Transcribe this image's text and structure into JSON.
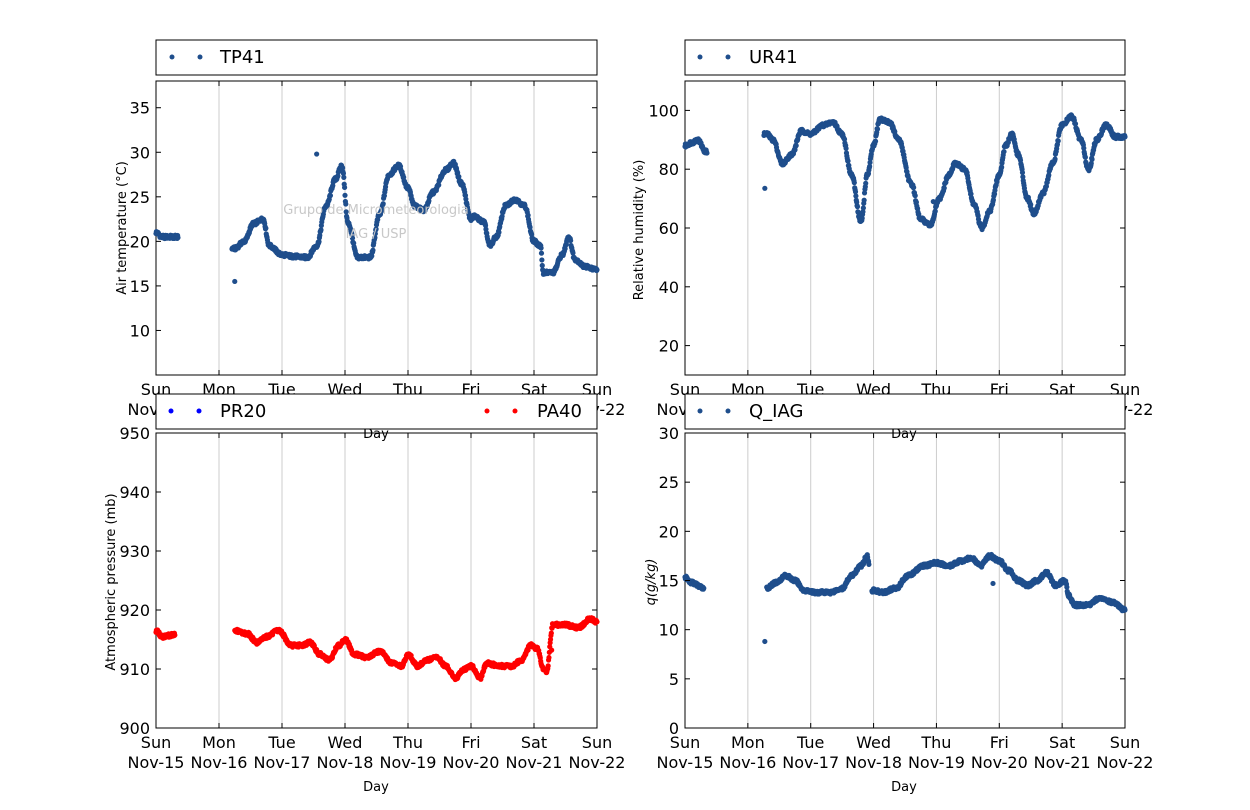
{
  "colors": {
    "blue": "#1f4e8c",
    "pure_blue": "#0000ff",
    "red": "#ff0000",
    "grid": "#cccccc"
  },
  "watermark": {
    "line1": "Grupo de Micrometeorologia",
    "line2": "IAG / USP"
  },
  "x_ticks": [
    {
      "day": 0,
      "top": "Sun",
      "bottom": "Nov-15"
    },
    {
      "day": 1,
      "top": "Mon",
      "bottom": "Nov-16"
    },
    {
      "day": 2,
      "top": "Tue",
      "bottom": "Nov-17"
    },
    {
      "day": 3,
      "top": "Wed",
      "bottom": "Nov-18"
    },
    {
      "day": 4,
      "top": "Thu",
      "bottom": "Nov-19"
    },
    {
      "day": 5,
      "top": "Fri",
      "bottom": "Nov-20"
    },
    {
      "day": 6,
      "top": "Sat",
      "bottom": "Nov-21"
    },
    {
      "day": 7,
      "top": "Sun",
      "bottom": "Nov-22"
    }
  ],
  "chart_data": [
    {
      "id": "temp",
      "type": "scatter",
      "xlabel": "Day",
      "ylabel": "Air temperature (°C)",
      "ylim": [
        5,
        38
      ],
      "yticks": [
        10,
        15,
        20,
        25,
        30,
        35
      ],
      "xlim": [
        "Nov-15",
        "Nov-22"
      ],
      "grid": "x",
      "legend": [
        {
          "name": "TP41",
          "color": "#1f4e8c"
        }
      ],
      "series": [
        {
          "name": "TP41",
          "color": "#1f4e8c",
          "gaps": [
            [
              0.35,
              1.2
            ]
          ],
          "points": [
            [
              0,
              21
            ],
            [
              0.1,
              20.5
            ],
            [
              0.33,
              20.5
            ],
            [
              1.25,
              19.2
            ],
            [
              1.4,
              20
            ],
            [
              1.55,
              22
            ],
            [
              1.7,
              22.5
            ],
            [
              1.8,
              19.5
            ],
            [
              2,
              18.5
            ],
            [
              2.2,
              18.3
            ],
            [
              2.4,
              18.2
            ],
            [
              2.55,
              19.5
            ],
            [
              2.7,
              24
            ],
            [
              2.85,
              27
            ],
            [
              2.95,
              28.5
            ],
            [
              3.05,
              22
            ],
            [
              3.2,
              18.2
            ],
            [
              3.4,
              18.2
            ],
            [
              3.55,
              23
            ],
            [
              3.7,
              27.5
            ],
            [
              3.85,
              28.5
            ],
            [
              4,
              26
            ],
            [
              4.1,
              24
            ],
            [
              4.25,
              23.5
            ],
            [
              4.4,
              25.5
            ],
            [
              4.6,
              28
            ],
            [
              4.72,
              28.8
            ],
            [
              4.85,
              26.5
            ],
            [
              5,
              22.5
            ],
            [
              5.05,
              22.8
            ],
            [
              5.2,
              22.2
            ],
            [
              5.3,
              19.5
            ],
            [
              5.4,
              20.5
            ],
            [
              5.55,
              24
            ],
            [
              5.7,
              24.7
            ],
            [
              5.85,
              24
            ],
            [
              6,
              20
            ],
            [
              6.1,
              19.5
            ],
            [
              6.15,
              16.5
            ],
            [
              6.3,
              16.5
            ],
            [
              6.45,
              18.5
            ],
            [
              6.55,
              20.5
            ],
            [
              6.65,
              18
            ],
            [
              6.8,
              17.2
            ],
            [
              7,
              16.8
            ]
          ]
        },
        {
          "name": "TP41-outlier",
          "color": "#1f4e8c",
          "points": [
            [
              1.25,
              15.5
            ],
            [
              2.55,
              29.8
            ]
          ]
        }
      ]
    },
    {
      "id": "rh",
      "type": "scatter",
      "xlabel": "Day",
      "ylabel": "Relative humidity (%)",
      "ylim": [
        10,
        110
      ],
      "yticks": [
        20,
        40,
        60,
        80,
        100
      ],
      "xlim": [
        "Nov-15",
        "Nov-22"
      ],
      "grid": "x",
      "legend": [
        {
          "name": "UR41",
          "color": "#1f4e8c"
        }
      ],
      "series": [
        {
          "name": "UR41",
          "color": "#1f4e8c",
          "gaps": [
            [
              0.35,
              1.25
            ]
          ],
          "points": [
            [
              0,
              88
            ],
            [
              0.1,
              89
            ],
            [
              0.2,
              90
            ],
            [
              0.33,
              86
            ],
            [
              1.3,
              92
            ],
            [
              1.4,
              90
            ],
            [
              1.55,
              82
            ],
            [
              1.7,
              85
            ],
            [
              1.85,
              93
            ],
            [
              2,
              92
            ],
            [
              2.2,
              95
            ],
            [
              2.35,
              96
            ],
            [
              2.5,
              92
            ],
            [
              2.65,
              78
            ],
            [
              2.8,
              62
            ],
            [
              2.9,
              78
            ],
            [
              3,
              88
            ],
            [
              3.1,
              97
            ],
            [
              3.25,
              96
            ],
            [
              3.4,
              90
            ],
            [
              3.6,
              75
            ],
            [
              3.75,
              63
            ],
            [
              3.9,
              61
            ],
            [
              4.05,
              70
            ],
            [
              4.2,
              78
            ],
            [
              4.3,
              82
            ],
            [
              4.45,
              80
            ],
            [
              4.6,
              68
            ],
            [
              4.72,
              60
            ],
            [
              4.85,
              66
            ],
            [
              5,
              78
            ],
            [
              5.1,
              88
            ],
            [
              5.2,
              92
            ],
            [
              5.3,
              85
            ],
            [
              5.45,
              70
            ],
            [
              5.55,
              65
            ],
            [
              5.7,
              72
            ],
            [
              5.85,
              82
            ],
            [
              6,
              95
            ],
            [
              6.15,
              98
            ],
            [
              6.3,
              90
            ],
            [
              6.42,
              80
            ],
            [
              6.55,
              90
            ],
            [
              6.7,
              95
            ],
            [
              6.85,
              91
            ],
            [
              7,
              91
            ]
          ]
        },
        {
          "name": "UR41-outlier",
          "color": "#1f4e8c",
          "points": [
            [
              1.27,
              73.5
            ],
            [
              3.95,
              69
            ]
          ]
        }
      ]
    },
    {
      "id": "pres",
      "type": "scatter",
      "xlabel": "Day",
      "ylabel": "Atmospheric pressure (mb)",
      "ylim": [
        900,
        950
      ],
      "yticks": [
        900,
        910,
        920,
        930,
        940,
        950
      ],
      "xlim": [
        "Nov-15",
        "Nov-22"
      ],
      "grid": "x",
      "legend": [
        {
          "name": "PR20",
          "color": "#0000ff"
        },
        {
          "name": "PA40",
          "color": "#ff0000"
        }
      ],
      "series": [
        {
          "name": "PA40",
          "color": "#ff0000",
          "gaps": [
            [
              0.3,
              1.25
            ]
          ],
          "points": [
            [
              0,
              916.5
            ],
            [
              0.1,
              915.5
            ],
            [
              0.28,
              915.8
            ],
            [
              1.25,
              916.5
            ],
            [
              1.45,
              916
            ],
            [
              1.6,
              914.5
            ],
            [
              1.75,
              915.5
            ],
            [
              1.95,
              916.5
            ],
            [
              2.15,
              914
            ],
            [
              2.3,
              914
            ],
            [
              2.45,
              914.5
            ],
            [
              2.6,
              912.5
            ],
            [
              2.75,
              911.5
            ],
            [
              2.9,
              914
            ],
            [
              3,
              915
            ],
            [
              3.15,
              912.5
            ],
            [
              3.35,
              912
            ],
            [
              3.55,
              913
            ],
            [
              3.75,
              911
            ],
            [
              3.9,
              910.5
            ],
            [
              4,
              912.5
            ],
            [
              4.15,
              910.5
            ],
            [
              4.3,
              911.5
            ],
            [
              4.45,
              912
            ],
            [
              4.6,
              910.5
            ],
            [
              4.75,
              908.5
            ],
            [
              4.9,
              910
            ],
            [
              5,
              910.5
            ],
            [
              5.15,
              908.5
            ],
            [
              5.25,
              911
            ],
            [
              5.45,
              910.5
            ],
            [
              5.65,
              910.5
            ],
            [
              5.8,
              911.5
            ],
            [
              5.95,
              914
            ],
            [
              6.05,
              913.5
            ],
            [
              6.15,
              910
            ],
            [
              6.2,
              909.5
            ],
            [
              6.3,
              917.5
            ],
            [
              6.5,
              917.5
            ],
            [
              6.7,
              917
            ],
            [
              6.9,
              918.5
            ],
            [
              7,
              918
            ]
          ]
        },
        {
          "name": "PA40-outlier",
          "color": "#ff0000",
          "points": [
            [
              6.28,
              913.2
            ]
          ]
        }
      ]
    },
    {
      "id": "q",
      "type": "scatter",
      "xlabel": "Day",
      "ylabel": "q(g/kg)",
      "ylim": [
        0,
        30
      ],
      "yticks": [
        0,
        5,
        10,
        15,
        20,
        25,
        30
      ],
      "xlim": [
        "Nov-15",
        "Nov-22"
      ],
      "grid": "x",
      "legend": [
        {
          "name": "Q_IAG",
          "color": "#1f4e8c"
        }
      ],
      "series": [
        {
          "name": "Q_IAG",
          "color": "#1f4e8c",
          "gaps": [
            [
              0.3,
              1.3
            ],
            [
              2.93,
              2.97
            ]
          ],
          "points": [
            [
              0,
              15.3
            ],
            [
              0.1,
              14.8
            ],
            [
              0.28,
              14.3
            ],
            [
              1.3,
              14.2
            ],
            [
              1.45,
              14.8
            ],
            [
              1.6,
              15.5
            ],
            [
              1.75,
              15
            ],
            [
              1.9,
              14
            ],
            [
              2.05,
              13.8
            ],
            [
              2.3,
              13.8
            ],
            [
              2.5,
              14.2
            ],
            [
              2.65,
              15.5
            ],
            [
              2.8,
              16.5
            ],
            [
              2.9,
              17.5
            ],
            [
              2.92,
              16.8
            ],
            [
              2.98,
              14
            ],
            [
              3.15,
              13.8
            ],
            [
              3.35,
              14.2
            ],
            [
              3.55,
              15.5
            ],
            [
              3.8,
              16.5
            ],
            [
              4,
              16.8
            ],
            [
              4.2,
              16.5
            ],
            [
              4.4,
              17
            ],
            [
              4.55,
              17.3
            ],
            [
              4.7,
              16.5
            ],
            [
              4.85,
              17.5
            ],
            [
              5,
              17
            ],
            [
              5.15,
              16
            ],
            [
              5.3,
              15
            ],
            [
              5.45,
              14.5
            ],
            [
              5.6,
              15
            ],
            [
              5.75,
              15.8
            ],
            [
              5.9,
              14.5
            ],
            [
              6.05,
              15
            ],
            [
              6.1,
              13.5
            ],
            [
              6.2,
              12.5
            ],
            [
              6.4,
              12.5
            ],
            [
              6.6,
              13.2
            ],
            [
              6.8,
              12.8
            ],
            [
              7,
              12
            ]
          ]
        },
        {
          "name": "Q_IAG-outlier",
          "color": "#1f4e8c",
          "points": [
            [
              1.27,
              8.8
            ],
            [
              4.9,
              14.7
            ]
          ]
        }
      ]
    }
  ]
}
